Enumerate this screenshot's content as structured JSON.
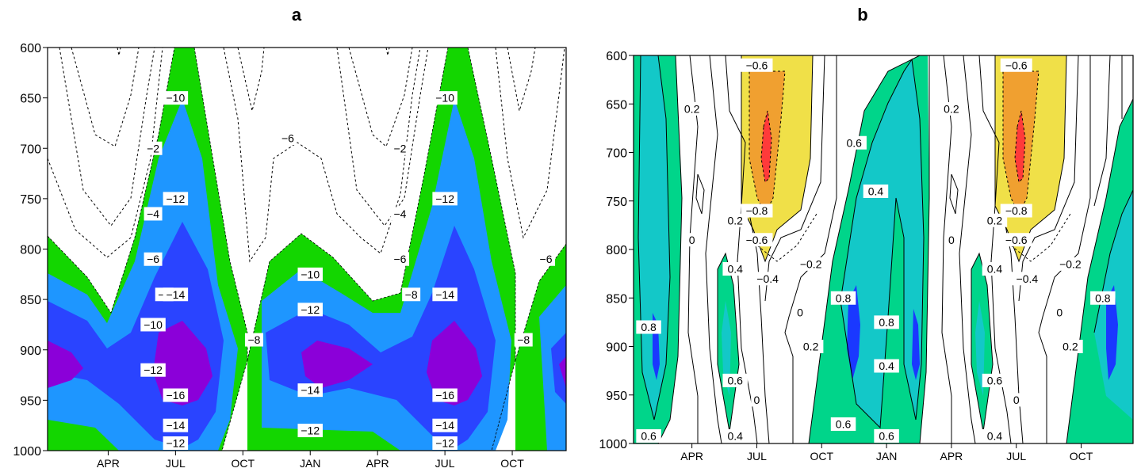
{
  "chart_data": [
    {
      "type": "contour",
      "title": "a",
      "xlabel": "",
      "ylabel": "",
      "ylim": [
        1000,
        600
      ],
      "y_ticks": [
        600,
        650,
        700,
        750,
        800,
        850,
        900,
        950,
        1000
      ],
      "x_tick_labels": [
        "APR",
        "JUL",
        "OCT",
        "JAN",
        "APR",
        "JUL",
        "OCT"
      ],
      "x_ticks_month": [
        4,
        7,
        10,
        13,
        16,
        19,
        22
      ],
      "xlim_month": [
        1.3,
        24.4
      ],
      "fill_colors": {
        "le_-16": "#8b00d9",
        "-16_to_-14": "#8b00d9",
        "-14_to_-12": "#2a44ff",
        "-12_to_-10": "#1e96ff",
        "-10_to_-8": "#13d600",
        "gt_-8": "#ffffff"
      },
      "contour_labels": [
        {
          "text": "-2",
          "month": 6,
          "level": 700
        },
        {
          "text": "-4",
          "month": 6,
          "level": 765
        },
        {
          "text": "-6",
          "month": 6,
          "level": 810
        },
        {
          "text": "-8",
          "month": 6.5,
          "level": 845
        },
        {
          "text": "-10",
          "month": 6,
          "level": 875
        },
        {
          "text": "-12",
          "month": 6,
          "level": 920
        },
        {
          "text": "-10",
          "month": 7,
          "level": 650
        },
        {
          "text": "-12",
          "month": 7,
          "level": 750
        },
        {
          "text": "-14",
          "month": 7,
          "level": 845
        },
        {
          "text": "-16",
          "month": 7,
          "level": 945
        },
        {
          "text": "-14",
          "month": 7,
          "level": 975
        },
        {
          "text": "-12",
          "month": 7,
          "level": 995
        },
        {
          "text": "-8",
          "month": 10.5,
          "level": 890
        },
        {
          "text": "-6",
          "month": 12,
          "level": 690
        },
        {
          "text": "-10",
          "month": 13,
          "level": 825
        },
        {
          "text": "-12",
          "month": 13,
          "level": 860
        },
        {
          "text": "-14",
          "month": 13,
          "level": 940
        },
        {
          "text": "-12",
          "month": 13,
          "level": 980
        },
        {
          "text": "-2",
          "month": 17,
          "level": 700
        },
        {
          "text": "-4",
          "month": 17,
          "level": 765
        },
        {
          "text": "-6",
          "month": 17,
          "level": 810
        },
        {
          "text": "-8",
          "month": 17.5,
          "level": 845
        },
        {
          "text": "-10",
          "month": 19,
          "level": 650
        },
        {
          "text": "-12",
          "month": 19,
          "level": 750
        },
        {
          "text": "-14",
          "month": 19,
          "level": 845
        },
        {
          "text": "-16",
          "month": 19,
          "level": 945
        },
        {
          "text": "-14",
          "month": 19,
          "level": 975
        },
        {
          "text": "-12",
          "month": 19,
          "level": 995
        },
        {
          "text": "-8",
          "month": 22.5,
          "level": 890
        },
        {
          "text": "-6",
          "month": 23.5,
          "level": 810
        }
      ]
    },
    {
      "type": "contour",
      "title": "b",
      "xlabel": "",
      "ylabel": "",
      "ylim": [
        1000,
        600
      ],
      "y_ticks": [
        600,
        650,
        700,
        750,
        800,
        850,
        900,
        950,
        1000
      ],
      "x_tick_labels": [
        "APR",
        "JUL",
        "OCT",
        "JAN",
        "APR",
        "JUL",
        "OCT"
      ],
      "x_ticks_month": [
        4,
        7,
        10,
        13,
        16,
        19,
        22
      ],
      "xlim_month": [
        1.3,
        24.4
      ],
      "fill_colors": {
        "ge_0.8": "#1a38ff",
        "0.6_to_0.8": "#13c8c8",
        "0.4_to_0.6": "#00d58a",
        "-0.4_to_0.4": "#ffffff",
        "-0.6_to_-0.4": "#f0e048",
        "-0.8_to_-0.6": "#f0a030",
        "le_-0.8": "#ff3a3a"
      },
      "contour_labels": [
        {
          "text": "-0.6",
          "month": 7,
          "level": 610
        },
        {
          "text": "0.2",
          "month": 4,
          "level": 655
        },
        {
          "text": "0.6",
          "month": 11.5,
          "level": 690
        },
        {
          "text": "0.4",
          "month": 12.5,
          "level": 740
        },
        {
          "text": "-0.8",
          "month": 7,
          "level": 760
        },
        {
          "text": "0",
          "month": 4,
          "level": 790
        },
        {
          "text": "0.2",
          "month": 6,
          "level": 770
        },
        {
          "text": "-0.6",
          "month": 7,
          "level": 790
        },
        {
          "text": "-0.2",
          "month": 9.5,
          "level": 815
        },
        {
          "text": "-0.4",
          "month": 7.5,
          "level": 830
        },
        {
          "text": "0.4",
          "month": 6,
          "level": 820
        },
        {
          "text": "0.8",
          "month": 11,
          "level": 850
        },
        {
          "text": "0.8",
          "month": 13,
          "level": 875
        },
        {
          "text": "0.8",
          "month": 2,
          "level": 880
        },
        {
          "text": "0",
          "month": 9,
          "level": 865
        },
        {
          "text": "0.2",
          "month": 9.5,
          "level": 900
        },
        {
          "text": "0.4",
          "month": 13,
          "level": 920
        },
        {
          "text": "0.6",
          "month": 6,
          "level": 935
        },
        {
          "text": "0",
          "month": 7,
          "level": 955
        },
        {
          "text": "0.6",
          "month": 11,
          "level": 980
        },
        {
          "text": "0.6",
          "month": 13,
          "level": 995
        },
        {
          "text": "0.6",
          "month": 2,
          "level": 995
        },
        {
          "text": "0.4",
          "month": 6,
          "level": 1000
        },
        {
          "text": "-0.6",
          "month": 19,
          "level": 610
        },
        {
          "text": "0.2",
          "month": 16,
          "level": 655
        },
        {
          "text": "-0.8",
          "month": 19,
          "level": 760
        },
        {
          "text": "0",
          "month": 16,
          "level": 790
        },
        {
          "text": "0.2",
          "month": 18,
          "level": 770
        },
        {
          "text": "-0.6",
          "month": 19,
          "level": 790
        },
        {
          "text": "-0.2",
          "month": 21.5,
          "level": 815
        },
        {
          "text": "-0.4",
          "month": 19.5,
          "level": 830
        },
        {
          "text": "0.4",
          "month": 18,
          "level": 820
        },
        {
          "text": "0.8",
          "month": 23,
          "level": 850
        },
        {
          "text": "0",
          "month": 21,
          "level": 865
        },
        {
          "text": "0.2",
          "month": 21.5,
          "level": 900
        },
        {
          "text": "0.6",
          "month": 18,
          "level": 935
        },
        {
          "text": "0",
          "month": 19,
          "level": 955
        },
        {
          "text": "0.4",
          "month": 18,
          "level": 1000
        }
      ]
    }
  ]
}
